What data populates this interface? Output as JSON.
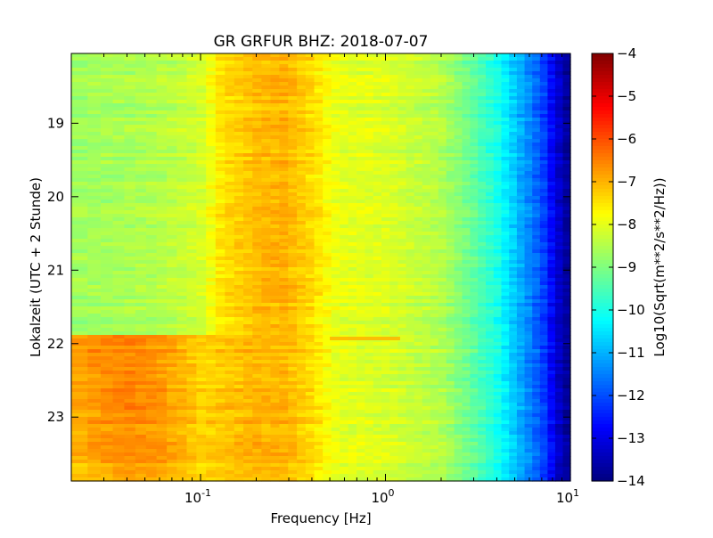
{
  "chart_data": {
    "type": "heatmap",
    "title": "GR GRFUR BHZ: 2018-07-07",
    "xlabel": "Frequency [Hz]",
    "ylabel": "Lokalzeit (UTC + 2 Stunde)",
    "x_scale": "log",
    "xlim": [
      0.02,
      10
    ],
    "ylim": [
      18.05,
      23.87
    ],
    "x_ticks": [
      {
        "base": "10",
        "exp": "-1",
        "value": 0.1
      },
      {
        "base": "10",
        "exp": "0",
        "value": 1
      },
      {
        "base": "10",
        "exp": "1",
        "value": 10
      }
    ],
    "y_ticks": [
      {
        "label": "19",
        "value": 19
      },
      {
        "label": "20",
        "value": 20
      },
      {
        "label": "21",
        "value": 21
      },
      {
        "label": "22",
        "value": 22
      },
      {
        "label": "23",
        "value": 23
      }
    ],
    "y_inverted": true,
    "colorbar": {
      "label": "Log10(Sqrt(m**2/s**2/Hz))",
      "min": -14,
      "max": -4,
      "colormap": "jet",
      "ticks": [
        {
          "label": "−4",
          "value": -4
        },
        {
          "label": "−5",
          "value": -5
        },
        {
          "label": "−6",
          "value": -6
        },
        {
          "label": "−7",
          "value": -7
        },
        {
          "label": "−8",
          "value": -8
        },
        {
          "label": "−9",
          "value": -9
        },
        {
          "label": "−10",
          "value": -10
        },
        {
          "label": "−11",
          "value": -11
        },
        {
          "label": "−12",
          "value": -12
        },
        {
          "label": "−13",
          "value": -13
        },
        {
          "label": "−14",
          "value": -14
        }
      ]
    },
    "spectrum_profile_quiet": [
      {
        "f": 0.02,
        "v": -8.7
      },
      {
        "f": 0.04,
        "v": -8.6
      },
      {
        "f": 0.06,
        "v": -8.5
      },
      {
        "f": 0.1,
        "v": -8.2
      },
      {
        "f": 0.13,
        "v": -7.5
      },
      {
        "f": 0.2,
        "v": -7.1
      },
      {
        "f": 0.28,
        "v": -7.0
      },
      {
        "f": 0.4,
        "v": -7.4
      },
      {
        "f": 0.55,
        "v": -8.0
      },
      {
        "f": 1.0,
        "v": -8.1
      },
      {
        "f": 2.0,
        "v": -8.5
      },
      {
        "f": 3.0,
        "v": -9.3
      },
      {
        "f": 4.0,
        "v": -10.0
      },
      {
        "f": 5.0,
        "v": -10.8
      },
      {
        "f": 7.0,
        "v": -12.0
      },
      {
        "f": 8.5,
        "v": -13.2
      },
      {
        "f": 10.0,
        "v": -13.9
      }
    ],
    "spectrum_profile_event": [
      {
        "f": 0.02,
        "v": -6.8
      },
      {
        "f": 0.04,
        "v": -6.5
      },
      {
        "f": 0.06,
        "v": -6.7
      },
      {
        "f": 0.08,
        "v": -7.0
      },
      {
        "f": 0.1,
        "v": -7.3
      },
      {
        "f": 0.13,
        "v": -7.2
      },
      {
        "f": 0.2,
        "v": -7.0
      },
      {
        "f": 0.28,
        "v": -7.0
      },
      {
        "f": 0.4,
        "v": -7.4
      },
      {
        "f": 0.55,
        "v": -8.0
      },
      {
        "f": 1.0,
        "v": -8.1
      },
      {
        "f": 2.0,
        "v": -8.5
      },
      {
        "f": 3.0,
        "v": -9.3
      },
      {
        "f": 4.0,
        "v": -10.0
      },
      {
        "f": 5.0,
        "v": -10.8
      },
      {
        "f": 7.0,
        "v": -12.0
      },
      {
        "f": 8.5,
        "v": -13.2
      },
      {
        "f": 10.0,
        "v": -13.9
      }
    ],
    "event_onset_hour": 21.88,
    "annotation_line": {
      "hour": 21.93,
      "f_from": 0.5,
      "f_to": 1.2,
      "v": -7.0
    }
  }
}
